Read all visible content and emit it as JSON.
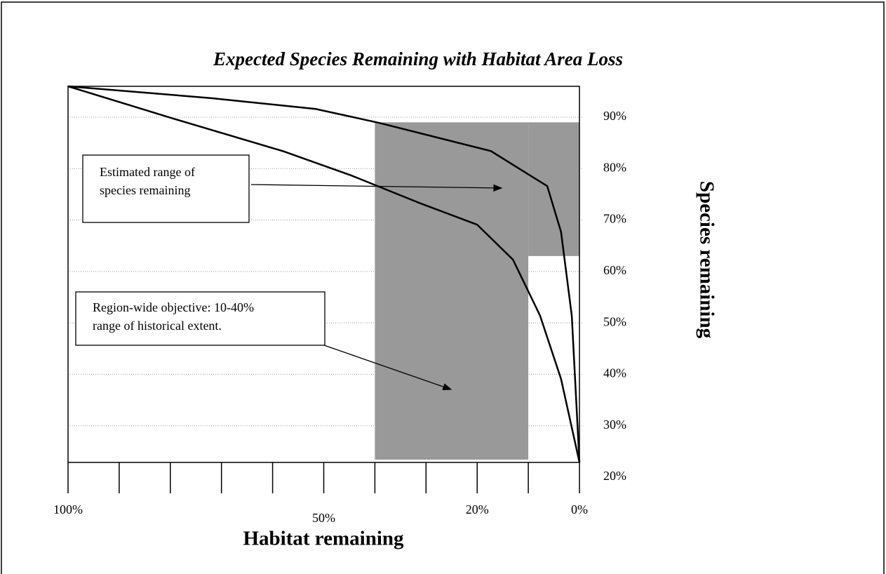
{
  "chart_data": {
    "type": "line",
    "title": "Expected Species Remaining with Habitat Area Loss",
    "x_label": "Habitat remaining",
    "y_label": "Species remaining",
    "xlim": [
      100,
      0
    ],
    "ylim": [
      20,
      96
    ],
    "xtick_marks": [
      100,
      90,
      80,
      70,
      60,
      50,
      40,
      30,
      20,
      10,
      0
    ],
    "xticks": [
      {
        "value": 100,
        "label": "100%"
      },
      {
        "value": 50,
        "label": "50%"
      },
      {
        "value": 20,
        "label": "20%"
      },
      {
        "value": 0,
        "label": "0%"
      }
    ],
    "yticks": [
      {
        "value": 20,
        "label": "20%"
      },
      {
        "value": 30,
        "label": "30%"
      },
      {
        "value": 40,
        "label": "40%"
      },
      {
        "value": 50,
        "label": "50%"
      },
      {
        "value": 60,
        "label": "60%"
      },
      {
        "value": 70,
        "label": "70%"
      },
      {
        "value": 80,
        "label": "80%"
      },
      {
        "value": 90,
        "label": "90%"
      }
    ],
    "grid": true,
    "series": [
      {
        "color": "#000000",
        "x": [
          100,
          72,
          51.6,
          39.2,
          17.3,
          6.3,
          3.6,
          1.5,
          0
        ],
        "values": [
          96,
          93.7,
          91.6,
          88.9,
          83.4,
          76.6,
          67.7,
          51.4,
          22.9
        ]
      },
      {
        "color": "#000000",
        "x": [
          100,
          79,
          58,
          44.7,
          31,
          20,
          13,
          7.7,
          3.6,
          0
        ],
        "values": [
          96,
          89.6,
          83.4,
          78.7,
          73.2,
          69.1,
          62.3,
          51.4,
          39.1,
          22.9
        ]
      }
    ],
    "regions": {
      "color": "#999999",
      "habitat_objective": [
        40,
        10
      ],
      "species_range": [
        63,
        89
      ]
    },
    "annotations": [
      {
        "lines": [
          "Estimated range of",
          "species remaining"
        ]
      },
      {
        "lines": [
          "Region-wide objective: 10-40%",
          "range of historical extent."
        ]
      }
    ]
  }
}
